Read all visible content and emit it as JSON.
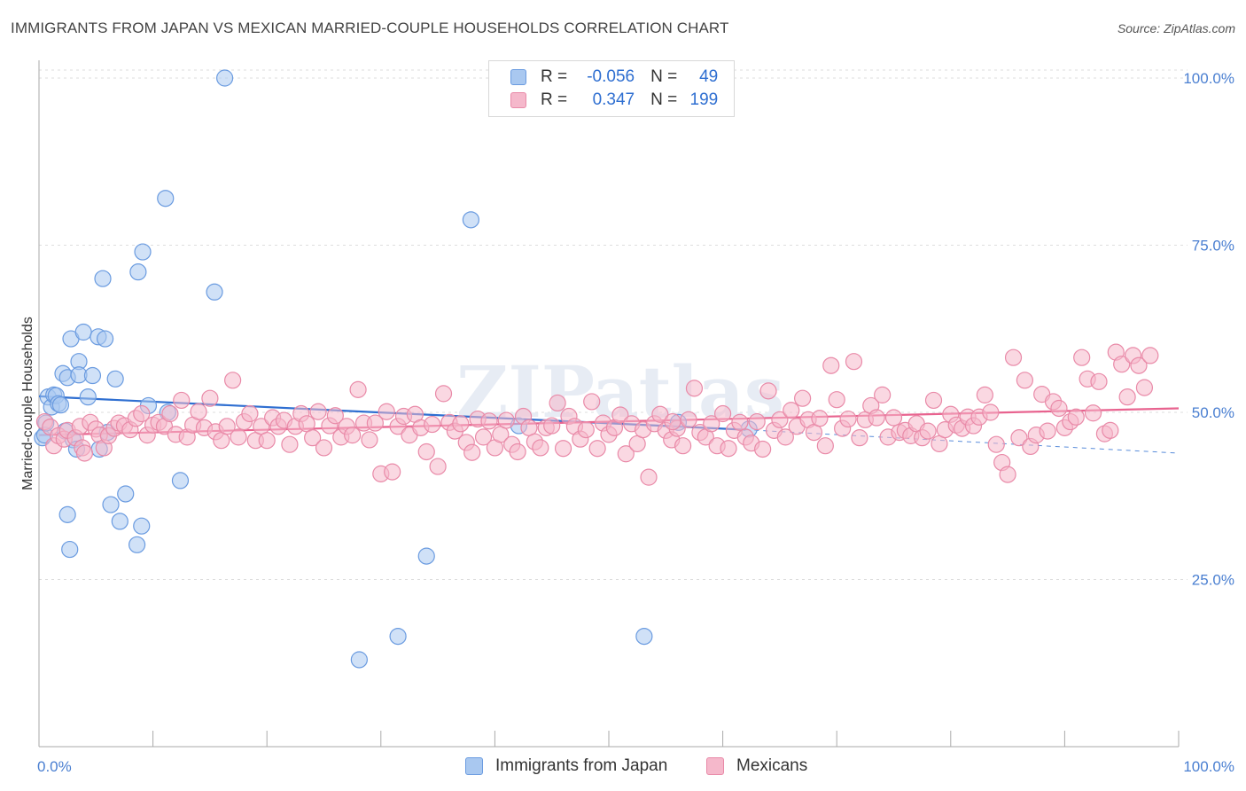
{
  "title": "IMMIGRANTS FROM JAPAN VS MEXICAN MARRIED-COUPLE HOUSEHOLDS CORRELATION CHART",
  "source": "Source: ZipAtlas.com",
  "watermark": "ZIPatlas",
  "colors": {
    "blue_fill": "#a9c8f0",
    "blue_stroke": "#6a9be0",
    "blue_line": "#2f6fd1",
    "pink_fill": "#f5b8cb",
    "pink_stroke": "#e98aa8",
    "pink_line": "#e8638f",
    "axis_label": "#4a7fd1",
    "grid": "#dddddd"
  },
  "stats_legend": {
    "rows": [
      {
        "r_label": "R =",
        "r_value": "-0.056",
        "n_label": "N =",
        "n_value": "49",
        "color": "blue"
      },
      {
        "r_label": "R =",
        "r_value": "0.347",
        "n_label": "N =",
        "n_value": "199",
        "color": "pink"
      }
    ]
  },
  "bottom_legend": {
    "items": [
      {
        "label": "Immigrants from Japan",
        "color": "blue"
      },
      {
        "label": "Mexicans",
        "color": "pink"
      }
    ]
  },
  "chart_data": {
    "type": "scatter",
    "title": "IMMIGRANTS FROM JAPAN VS MEXICAN MARRIED-COUPLE HOUSEHOLDS CORRELATION CHART",
    "xlabel": "",
    "ylabel": "Married-couple Households",
    "xlim": [
      0,
      100
    ],
    "ylim": [
      0,
      105
    ],
    "x_tick_labels": [
      "0.0%",
      "100.0%"
    ],
    "y_ticks": [
      25,
      50,
      75,
      100
    ],
    "y_tick_labels": [
      "25.0%",
      "50.0%",
      "75.0%",
      "100.0%"
    ],
    "grid": true,
    "legend_position": "top-center",
    "series": [
      {
        "name": "Immigrants from Japan",
        "color": "blue",
        "r": -0.056,
        "n": 49,
        "trend": {
          "x0": 0,
          "y0": 52.4,
          "x1": 62,
          "y1": 47.4,
          "dashed_to_x": 100,
          "dashed_to_y": 43.9
        },
        "points": [
          [
            0.3,
            46.2
          ],
          [
            0.5,
            46.6
          ],
          [
            0.6,
            48.4
          ],
          [
            0.8,
            52.3
          ],
          [
            1.1,
            50.8
          ],
          [
            1.3,
            52.6
          ],
          [
            1.5,
            52.5
          ],
          [
            1.7,
            51.3
          ],
          [
            1.9,
            51.1
          ],
          [
            2.1,
            55.8
          ],
          [
            2.3,
            47.2
          ],
          [
            2.5,
            34.7
          ],
          [
            2.7,
            29.5
          ],
          [
            2.5,
            55.2
          ],
          [
            2.8,
            61.0
          ],
          [
            3.0,
            45.9
          ],
          [
            3.3,
            44.5
          ],
          [
            3.5,
            57.6
          ],
          [
            3.5,
            55.6
          ],
          [
            3.9,
            62.0
          ],
          [
            4.3,
            52.3
          ],
          [
            4.7,
            55.5
          ],
          [
            5.2,
            61.3
          ],
          [
            5.3,
            44.5
          ],
          [
            5.6,
            70.0
          ],
          [
            5.8,
            61.0
          ],
          [
            6.0,
            47.0
          ],
          [
            6.3,
            36.2
          ],
          [
            6.7,
            55.0
          ],
          [
            7.1,
            33.7
          ],
          [
            7.6,
            37.8
          ],
          [
            8.6,
            30.2
          ],
          [
            9.0,
            33.0
          ],
          [
            8.7,
            71.0
          ],
          [
            9.1,
            74.0
          ],
          [
            9.6,
            51.0
          ],
          [
            11.1,
            82.0
          ],
          [
            11.3,
            50.0
          ],
          [
            12.4,
            39.8
          ],
          [
            15.4,
            68.0
          ],
          [
            16.3,
            100.0
          ],
          [
            28.1,
            13.0
          ],
          [
            31.5,
            16.5
          ],
          [
            34.0,
            28.5
          ],
          [
            37.9,
            78.8
          ],
          [
            42.1,
            48.0
          ],
          [
            53.1,
            16.5
          ],
          [
            56.1,
            48.5
          ],
          [
            62.3,
            47.5
          ]
        ]
      },
      {
        "name": "Mexicans",
        "color": "pink",
        "r": 0.347,
        "n": 199,
        "trend": {
          "x0": 0,
          "y0": 46.6,
          "x1": 100,
          "y1": 50.6
        },
        "points": [
          [
            0.5,
            48.6
          ],
          [
            1.0,
            47.8
          ],
          [
            1.3,
            45.0
          ],
          [
            1.7,
            46.5
          ],
          [
            2.2,
            46.0
          ],
          [
            2.5,
            47.3
          ],
          [
            3.2,
            46.2
          ],
          [
            3.6,
            47.9
          ],
          [
            3.8,
            44.7
          ],
          [
            4.0,
            43.9
          ],
          [
            4.5,
            48.5
          ],
          [
            5.0,
            47.5
          ],
          [
            5.3,
            46.6
          ],
          [
            5.7,
            44.7
          ],
          [
            6.1,
            46.5
          ],
          [
            6.6,
            47.6
          ],
          [
            7.0,
            48.4
          ],
          [
            7.5,
            48.0
          ],
          [
            8.0,
            47.4
          ],
          [
            8.5,
            49.1
          ],
          [
            9.0,
            49.8
          ],
          [
            9.5,
            46.6
          ],
          [
            10.0,
            48.1
          ],
          [
            10.5,
            48.5
          ],
          [
            11.0,
            47.9
          ],
          [
            11.5,
            49.8
          ],
          [
            12.0,
            46.7
          ],
          [
            12.5,
            51.8
          ],
          [
            13.0,
            46.3
          ],
          [
            13.5,
            48.1
          ],
          [
            14.0,
            50.1
          ],
          [
            14.5,
            47.7
          ],
          [
            15.0,
            52.1
          ],
          [
            15.5,
            47.1
          ],
          [
            16.0,
            45.8
          ],
          [
            16.5,
            47.9
          ],
          [
            17.0,
            54.8
          ],
          [
            17.5,
            46.3
          ],
          [
            18.0,
            48.6
          ],
          [
            18.5,
            49.8
          ],
          [
            19.0,
            45.8
          ],
          [
            19.5,
            47.9
          ],
          [
            20.0,
            45.8
          ],
          [
            20.5,
            49.2
          ],
          [
            21.0,
            47.9
          ],
          [
            21.5,
            48.8
          ],
          [
            22.0,
            45.2
          ],
          [
            22.5,
            47.9
          ],
          [
            23.0,
            49.8
          ],
          [
            23.5,
            48.3
          ],
          [
            24.0,
            46.2
          ],
          [
            24.5,
            50.1
          ],
          [
            25.0,
            44.7
          ],
          [
            25.5,
            48.0
          ],
          [
            26.0,
            49.5
          ],
          [
            26.5,
            46.3
          ],
          [
            27.0,
            47.9
          ],
          [
            27.5,
            46.6
          ],
          [
            28.0,
            53.4
          ],
          [
            28.5,
            48.4
          ],
          [
            29.0,
            45.9
          ],
          [
            29.5,
            48.4
          ],
          [
            30.0,
            40.8
          ],
          [
            30.5,
            50.1
          ],
          [
            31.0,
            41.1
          ],
          [
            31.5,
            47.9
          ],
          [
            32.0,
            49.4
          ],
          [
            32.5,
            46.6
          ],
          [
            33.0,
            49.7
          ],
          [
            33.5,
            47.7
          ],
          [
            34.0,
            44.1
          ],
          [
            34.5,
            48.2
          ],
          [
            35.0,
            41.9
          ],
          [
            35.5,
            52.8
          ],
          [
            36.0,
            48.5
          ],
          [
            36.5,
            47.2
          ],
          [
            37.0,
            48.3
          ],
          [
            37.5,
            45.5
          ],
          [
            38.0,
            44.0
          ],
          [
            38.5,
            49.0
          ],
          [
            39.0,
            46.3
          ],
          [
            39.5,
            48.7
          ],
          [
            40.0,
            44.7
          ],
          [
            40.5,
            46.7
          ],
          [
            41.0,
            48.8
          ],
          [
            41.5,
            45.2
          ],
          [
            42.0,
            44.1
          ],
          [
            42.5,
            49.4
          ],
          [
            43.0,
            47.7
          ],
          [
            43.5,
            45.6
          ],
          [
            44.0,
            44.7
          ],
          [
            44.5,
            47.7
          ],
          [
            45.0,
            48.0
          ],
          [
            45.5,
            51.4
          ],
          [
            46.0,
            44.6
          ],
          [
            46.5,
            49.4
          ],
          [
            47.0,
            47.9
          ],
          [
            47.5,
            46.0
          ],
          [
            48.0,
            47.4
          ],
          [
            48.5,
            51.6
          ],
          [
            49.0,
            44.6
          ],
          [
            49.5,
            48.4
          ],
          [
            50.0,
            46.7
          ],
          [
            50.5,
            47.7
          ],
          [
            51.0,
            49.6
          ],
          [
            51.5,
            43.8
          ],
          [
            52.0,
            48.3
          ],
          [
            52.5,
            45.3
          ],
          [
            53.0,
            47.4
          ],
          [
            53.5,
            40.3
          ],
          [
            54.0,
            48.3
          ],
          [
            54.5,
            49.7
          ],
          [
            55.0,
            47.3
          ],
          [
            55.5,
            45.9
          ],
          [
            56.0,
            47.6
          ],
          [
            56.5,
            45.0
          ],
          [
            57.0,
            48.9
          ],
          [
            57.5,
            53.6
          ],
          [
            58.0,
            47.0
          ],
          [
            58.5,
            46.3
          ],
          [
            59.0,
            48.3
          ],
          [
            59.5,
            45.0
          ],
          [
            60.0,
            49.8
          ],
          [
            60.5,
            44.6
          ],
          [
            61.0,
            47.3
          ],
          [
            61.5,
            48.5
          ],
          [
            62.0,
            46.3
          ],
          [
            62.5,
            45.4
          ],
          [
            63.0,
            48.6
          ],
          [
            63.5,
            44.5
          ],
          [
            64.0,
            53.2
          ],
          [
            64.5,
            47.3
          ],
          [
            65.0,
            48.9
          ],
          [
            65.5,
            46.3
          ],
          [
            66.0,
            50.3
          ],
          [
            66.5,
            47.9
          ],
          [
            67.0,
            52.1
          ],
          [
            67.5,
            48.9
          ],
          [
            68.0,
            47.0
          ],
          [
            68.5,
            49.1
          ],
          [
            69.0,
            45.0
          ],
          [
            69.5,
            57.0
          ],
          [
            70.0,
            51.9
          ],
          [
            70.5,
            47.6
          ],
          [
            71.0,
            49.0
          ],
          [
            71.5,
            57.6
          ],
          [
            72.0,
            46.2
          ],
          [
            72.5,
            48.9
          ],
          [
            73.0,
            51.0
          ],
          [
            73.5,
            49.2
          ],
          [
            74.0,
            52.6
          ],
          [
            74.5,
            46.3
          ],
          [
            75.0,
            49.2
          ],
          [
            75.5,
            47.0
          ],
          [
            76.0,
            47.3
          ],
          [
            76.5,
            46.5
          ],
          [
            77.0,
            48.3
          ],
          [
            77.5,
            46.2
          ],
          [
            78.0,
            47.2
          ],
          [
            78.5,
            51.8
          ],
          [
            79.0,
            45.3
          ],
          [
            79.5,
            47.4
          ],
          [
            80.0,
            49.7
          ],
          [
            80.5,
            48.1
          ],
          [
            81.0,
            47.6
          ],
          [
            81.5,
            49.3
          ],
          [
            82.0,
            48.0
          ],
          [
            82.5,
            49.3
          ],
          [
            83.0,
            52.6
          ],
          [
            83.5,
            50.0
          ],
          [
            84.0,
            45.2
          ],
          [
            84.5,
            42.5
          ],
          [
            85.0,
            40.7
          ],
          [
            85.5,
            58.2
          ],
          [
            86.0,
            46.2
          ],
          [
            86.5,
            54.8
          ],
          [
            87.0,
            44.9
          ],
          [
            87.5,
            46.6
          ],
          [
            88.0,
            52.7
          ],
          [
            88.5,
            47.2
          ],
          [
            89.0,
            51.6
          ],
          [
            89.5,
            50.6
          ],
          [
            90.0,
            47.7
          ],
          [
            90.5,
            48.6
          ],
          [
            91.0,
            49.3
          ],
          [
            91.5,
            58.2
          ],
          [
            92.0,
            55.0
          ],
          [
            92.5,
            49.9
          ],
          [
            93.0,
            54.6
          ],
          [
            93.5,
            46.8
          ],
          [
            94.0,
            47.3
          ],
          [
            94.5,
            59.0
          ],
          [
            95.0,
            57.2
          ],
          [
            95.5,
            52.3
          ],
          [
            96.0,
            58.5
          ],
          [
            96.5,
            57.0
          ],
          [
            97.0,
            53.7
          ],
          [
            97.5,
            58.5
          ],
          [
            55.6,
            48.6
          ]
        ]
      }
    ]
  }
}
